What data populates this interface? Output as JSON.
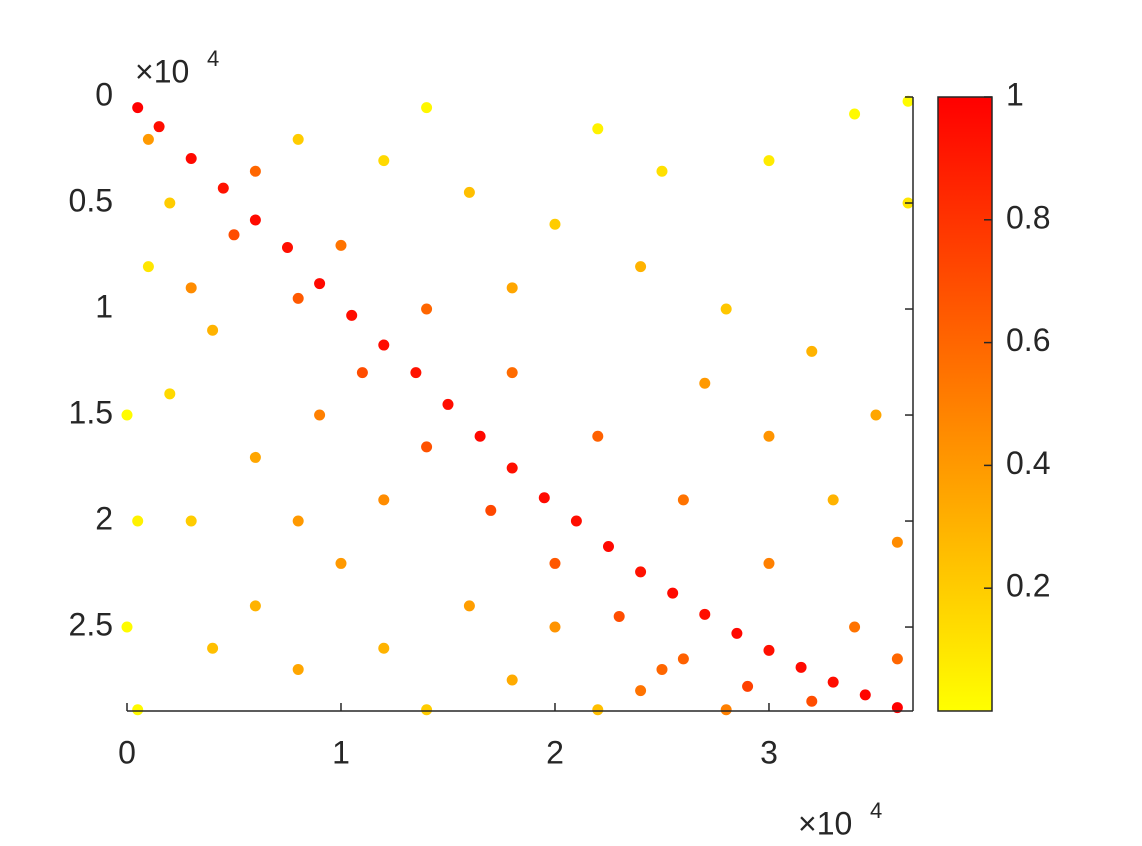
{
  "chart_data": {
    "type": "scatter",
    "x_multiplier": "×10",
    "x_multiplier_exponent": "4",
    "y_multiplier": "×10",
    "y_multiplier_exponent": "4",
    "xlim": [
      0,
      36730
    ],
    "ylim": [
      0,
      28960
    ],
    "y_reversed": true,
    "xticks": [
      0,
      {
        "value": 10000,
        "label": "1"
      },
      {
        "value": 20000,
        "label": "2"
      },
      {
        "value": 30000,
        "label": "3"
      }
    ],
    "yticks": [
      0,
      {
        "value": 5000,
        "label": "0.5"
      },
      {
        "value": 10000,
        "label": "1"
      },
      {
        "value": 15000,
        "label": "1.5"
      },
      {
        "value": 20000,
        "label": "2"
      },
      {
        "value": 25000,
        "label": "2.5"
      }
    ],
    "colormap": [
      "#ffff00",
      "#ff0000"
    ],
    "clim": [
      0,
      1
    ],
    "colorbar_ticks": [
      0.2,
      0.4,
      0.6,
      0.8,
      1
    ],
    "series": [
      {
        "x": [
          500,
          1500,
          3000,
          4500,
          6000,
          7500,
          9000,
          10500,
          12000,
          13500,
          15000,
          16500,
          18000,
          19500,
          21000,
          22500,
          24000,
          25500,
          27000,
          28500,
          30000,
          31500,
          33000,
          34500,
          36000,
          5000,
          8000,
          11000,
          14000,
          17000,
          20000,
          23000,
          26000,
          29000,
          32000,
          6000,
          10000,
          14000,
          18000,
          22000,
          26000,
          30000,
          34000,
          36000,
          8000,
          12000,
          16000,
          20000,
          24000,
          28000,
          32000,
          35000,
          36500,
          30000,
          22000,
          14000,
          34000,
          36500,
          27000,
          33000,
          36000,
          25000,
          18000,
          30000,
          1000,
          2000,
          3000,
          4000,
          500,
          6000,
          8000,
          10000,
          12000,
          14000,
          16000,
          18000,
          20000,
          22000,
          2000,
          4000,
          6000,
          8000,
          0,
          0,
          3000,
          9000,
          12000,
          25000,
          28000,
          24000,
          1000,
          500
        ],
        "values": [
          500,
          1400,
          2900,
          4300,
          5800,
          7100,
          8800,
          10300,
          11700,
          13000,
          14500,
          16000,
          17500,
          18900,
          20000,
          21200,
          22400,
          23400,
          24400,
          25300,
          26100,
          26900,
          27600,
          28200,
          28800,
          6500,
          9500,
          13000,
          16500,
          19500,
          22000,
          24500,
          26500,
          27800,
          28500,
          3500,
          7000,
          10000,
          13000,
          16000,
          19000,
          22000,
          25000,
          26500,
          2000,
          3000,
          4500,
          6000,
          8000,
          10000,
          12000,
          15000,
          5000,
          3000,
          1500,
          500,
          800,
          200,
          13500,
          19000,
          21000,
          3500,
          9000,
          16000,
          8000,
          14000,
          20000,
          26000,
          28900,
          24000,
          27000,
          22000,
          26000,
          28900,
          24000,
          27500,
          25000,
          28900,
          5000,
          11000,
          17000,
          20000,
          15000,
          25000,
          9000,
          15000,
          19000,
          27000,
          28900,
          28000,
          2000,
          20000
        ],
        "color_values": [
          1,
          0.95,
          0.97,
          0.93,
          0.96,
          0.94,
          0.97,
          0.95,
          0.96,
          0.93,
          0.95,
          0.97,
          0.94,
          0.96,
          0.95,
          0.97,
          0.93,
          0.96,
          0.95,
          0.97,
          0.94,
          0.96,
          0.95,
          0.98,
          1,
          0.7,
          0.65,
          0.7,
          0.68,
          0.72,
          0.66,
          0.7,
          0.62,
          0.75,
          0.7,
          0.6,
          0.55,
          0.6,
          0.58,
          0.62,
          0.55,
          0.5,
          0.55,
          0.6,
          0.2,
          0.15,
          0.25,
          0.2,
          0.3,
          0.22,
          0.3,
          0.35,
          0.1,
          0.08,
          0.05,
          0.03,
          0.02,
          0.01,
          0.4,
          0.3,
          0.45,
          0.12,
          0.35,
          0.42,
          0.1,
          0.15,
          0.2,
          0.25,
          0.02,
          0.3,
          0.35,
          0.4,
          0.3,
          0.2,
          0.38,
          0.33,
          0.42,
          0.25,
          0.2,
          0.3,
          0.35,
          0.4,
          0.01,
          0.01,
          0.45,
          0.5,
          0.45,
          0.6,
          0.5,
          0.55,
          0.4,
          0.05
        ]
      }
    ]
  }
}
